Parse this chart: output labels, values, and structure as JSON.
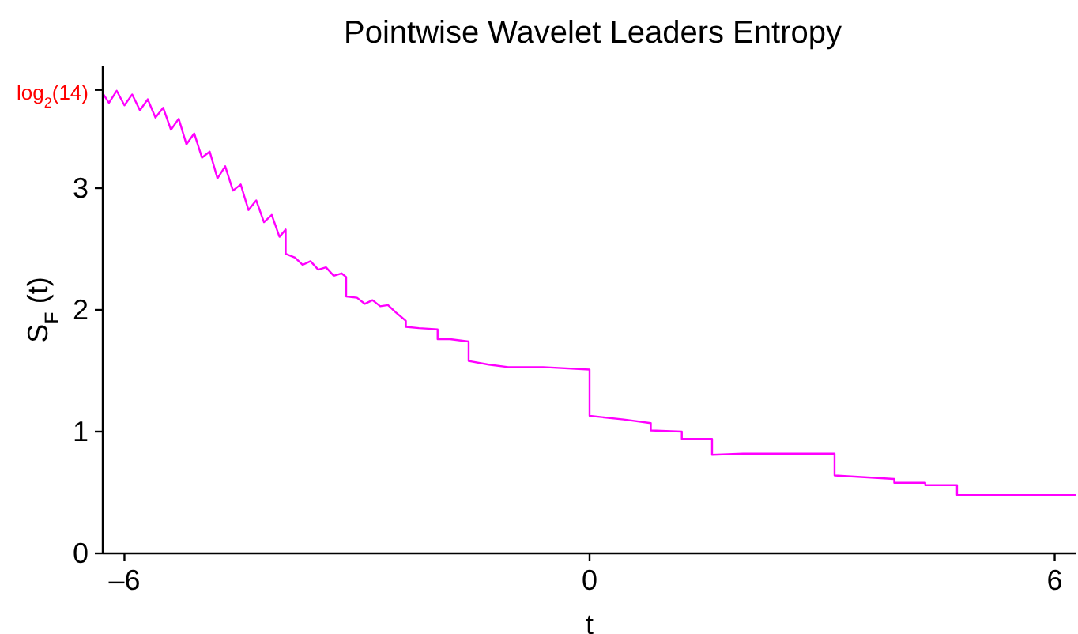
{
  "chart_data": {
    "type": "line",
    "title": "Pointwise Wavelet Leaders Entropy",
    "xlabel": "t",
    "ylabel": "S$_{F}$ (t)",
    "x": [
      -6.28,
      -6.2,
      -6.1,
      -6.0,
      -5.9,
      -5.8,
      -5.7,
      -5.6,
      -5.5,
      -5.4,
      -5.3,
      -5.2,
      -5.1,
      -5.0,
      -4.9,
      -4.8,
      -4.7,
      -4.6,
      -4.5,
      -4.4,
      -4.3,
      -4.2,
      -4.1,
      -4.0,
      -3.92,
      -3.92,
      -3.8,
      -3.7,
      -3.6,
      -3.5,
      -3.4,
      -3.3,
      -3.2,
      -3.14,
      -3.14,
      -3.0,
      -2.9,
      -2.8,
      -2.7,
      -2.6,
      -2.5,
      -2.37,
      -2.37,
      -2.2,
      -1.96,
      -1.96,
      -1.8,
      -1.56,
      -1.56,
      -1.3,
      -1.05,
      -0.6,
      0,
      0,
      0.44,
      0.79,
      0.79,
      1.19,
      1.19,
      1.58,
      1.58,
      1.98,
      3.16,
      3.16,
      3.93,
      3.93,
      4.33,
      4.33,
      4.74,
      4.74,
      6.28
    ],
    "series": [
      {
        "color": "#ff00ff",
        "values": [
          3.78,
          3.7,
          3.8,
          3.68,
          3.77,
          3.64,
          3.73,
          3.58,
          3.66,
          3.48,
          3.57,
          3.36,
          3.45,
          3.25,
          3.3,
          3.08,
          3.18,
          2.98,
          3.03,
          2.82,
          2.9,
          2.72,
          2.78,
          2.6,
          2.66,
          2.46,
          2.43,
          2.37,
          2.4,
          2.33,
          2.35,
          2.28,
          2.3,
          2.27,
          2.11,
          2.1,
          2.05,
          2.08,
          2.03,
          2.04,
          1.98,
          1.91,
          1.86,
          1.85,
          1.84,
          1.76,
          1.76,
          1.74,
          1.58,
          1.55,
          1.53,
          1.53,
          1.51,
          1.13,
          1.1,
          1.07,
          1.01,
          1.0,
          0.94,
          0.94,
          0.81,
          0.82,
          0.82,
          0.64,
          0.61,
          0.58,
          0.58,
          0.56,
          0.56,
          0.48,
          0.48
        ]
      }
    ],
    "xlim": [
      -6.28,
      6.28
    ],
    "xticks": [
      {
        "value": -6,
        "label": "–6"
      },
      0,
      6
    ],
    "ylim": [
      0,
      4
    ],
    "yticks": [
      0,
      1,
      2,
      3,
      {
        "value": 3.807,
        "label": "log$_{2}$(14)"
      }
    ],
    "grid": false,
    "legend": false,
    "marker": "none",
    "line_style": "solid"
  }
}
